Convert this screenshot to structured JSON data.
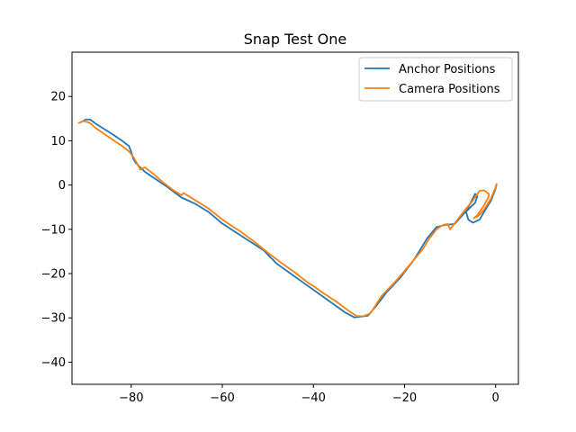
{
  "chart_data": {
    "type": "line",
    "title": "Snap Test One",
    "xlabel": "",
    "ylabel": "",
    "xlim": [
      -93,
      5
    ],
    "ylim": [
      -45,
      30
    ],
    "xticks": [
      -80,
      -60,
      -40,
      -20,
      0
    ],
    "yticks": [
      -40,
      -30,
      -20,
      -10,
      0,
      10,
      20
    ],
    "xtick_labels": [
      "−80",
      "−60",
      "−40",
      "−20",
      "0"
    ],
    "ytick_labels": [
      "−40",
      "−30",
      "−20",
      "−10",
      "0",
      "10",
      "20"
    ],
    "grid": false,
    "legend_position": "top-right",
    "series": [
      {
        "name": "Anchor Positions",
        "color": "#1f77b4",
        "points": [
          [
            -91,
            14.2
          ],
          [
            -90,
            14.8
          ],
          [
            -89,
            14.8
          ],
          [
            -88,
            14.0
          ],
          [
            -86,
            12.7
          ],
          [
            -84,
            11.4
          ],
          [
            -82,
            10.0
          ],
          [
            -80.5,
            8.8
          ],
          [
            -80,
            7.5
          ],
          [
            -79.5,
            5.8
          ],
          [
            -79,
            5.0
          ],
          [
            -77,
            3.0
          ],
          [
            -75,
            1.6
          ],
          [
            -72,
            -0.5
          ],
          [
            -69,
            -2.8
          ],
          [
            -66,
            -4.2
          ],
          [
            -63,
            -6.1
          ],
          [
            -60,
            -8.7
          ],
          [
            -57,
            -10.7
          ],
          [
            -54,
            -12.7
          ],
          [
            -51,
            -14.7
          ],
          [
            -48,
            -17.8
          ],
          [
            -45,
            -20.0
          ],
          [
            -42,
            -22.2
          ],
          [
            -39,
            -24.4
          ],
          [
            -36,
            -26.6
          ],
          [
            -33,
            -28.8
          ],
          [
            -31,
            -29.9
          ],
          [
            -28,
            -29.5
          ],
          [
            -26,
            -27.0
          ],
          [
            -24,
            -24.3
          ],
          [
            -21,
            -21.0
          ],
          [
            -18,
            -17.0
          ],
          [
            -15,
            -12.0
          ],
          [
            -13,
            -9.5
          ],
          [
            -11,
            -9.0
          ],
          [
            -9,
            -8.8
          ],
          [
            -7,
            -6.5
          ],
          [
            -5.5,
            -5.0
          ],
          [
            -4.5,
            -4.0
          ],
          [
            -4,
            -2.5
          ],
          [
            -4.5,
            -2.0
          ],
          [
            -5.5,
            -4.0
          ],
          [
            -6.5,
            -6.0
          ],
          [
            -6,
            -7.8
          ],
          [
            -5,
            -8.5
          ],
          [
            -3.5,
            -7.8
          ],
          [
            -2.5,
            -6.0
          ],
          [
            -1,
            -3.5
          ],
          [
            0,
            -0.8
          ],
          [
            0.2,
            0.2
          ]
        ]
      },
      {
        "name": "Camera Positions",
        "color": "#ff7f0e",
        "points": [
          [
            -91.5,
            14.0
          ],
          [
            -90.5,
            14.5
          ],
          [
            -89,
            14.0
          ],
          [
            -88,
            13.0
          ],
          [
            -86,
            11.6
          ],
          [
            -84,
            10.2
          ],
          [
            -82,
            8.8
          ],
          [
            -80.5,
            7.6
          ],
          [
            -79.5,
            6.3
          ],
          [
            -78.5,
            4.5
          ],
          [
            -78,
            3.5
          ],
          [
            -77,
            4.0
          ],
          [
            -75,
            2.4
          ],
          [
            -73,
            0.6
          ],
          [
            -71,
            -1.0
          ],
          [
            -69,
            -2.3
          ],
          [
            -68.5,
            -1.8
          ],
          [
            -66,
            -3.4
          ],
          [
            -63,
            -5.3
          ],
          [
            -60,
            -7.8
          ],
          [
            -59,
            -8.5
          ],
          [
            -56,
            -10.5
          ],
          [
            -53,
            -12.8
          ],
          [
            -50,
            -15.3
          ],
          [
            -47,
            -17.6
          ],
          [
            -44,
            -19.8
          ],
          [
            -41,
            -22.2
          ],
          [
            -40,
            -22.8
          ],
          [
            -38,
            -24.3
          ],
          [
            -35,
            -26.3
          ],
          [
            -32,
            -28.6
          ],
          [
            -30.5,
            -29.6
          ],
          [
            -29,
            -29.6
          ],
          [
            -27.5,
            -29.0
          ],
          [
            -25,
            -25.0
          ],
          [
            -22,
            -21.8
          ],
          [
            -19,
            -18.2
          ],
          [
            -16,
            -14.5
          ],
          [
            -14.5,
            -12.0
          ],
          [
            -13,
            -10.0
          ],
          [
            -11.5,
            -9.0
          ],
          [
            -10.5,
            -8.8
          ],
          [
            -10,
            -10.0
          ],
          [
            -8.5,
            -8.0
          ],
          [
            -7,
            -6.0
          ],
          [
            -5,
            -3.5
          ],
          [
            -3.5,
            -1.3
          ],
          [
            -2.5,
            -1.2
          ],
          [
            -1.5,
            -2.0
          ],
          [
            -1.5,
            -2.6
          ],
          [
            -2.5,
            -4.5
          ],
          [
            -4,
            -6.8
          ],
          [
            -4.8,
            -7.5
          ],
          [
            -3.8,
            -7.0
          ],
          [
            -2.5,
            -5.5
          ],
          [
            -1,
            -3.0
          ],
          [
            0,
            -0.5
          ],
          [
            0.2,
            0.2
          ]
        ]
      }
    ]
  }
}
